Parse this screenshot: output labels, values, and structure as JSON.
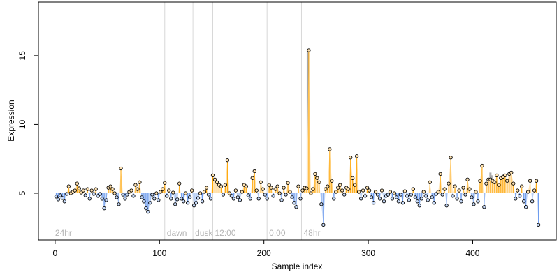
{
  "chart_data": {
    "type": "scatter",
    "title": "",
    "xlabel": "Sample index",
    "ylabel": "Expression",
    "xlim": [
      -16,
      480
    ],
    "ylim": [
      1.6,
      18.9
    ],
    "baseline": 5.0,
    "x_ticks": [
      0,
      100,
      200,
      300,
      400
    ],
    "y_ticks": [
      5,
      10,
      15
    ],
    "phase_markers": [
      {
        "label": "24hr",
        "x": 0
      },
      {
        "label": "dawn",
        "x": 105
      },
      {
        "label": "dusk",
        "x": 132
      },
      {
        "label": "12:00",
        "x": 151
      },
      {
        "label": "0:00",
        "x": 203
      },
      {
        "label": "48hr",
        "x": 236
      }
    ],
    "gray_bars": [
      {
        "x": 242,
        "value": 15.4
      },
      {
        "x": 243,
        "value": 10.2
      },
      {
        "x": 417,
        "value": 6.5
      },
      {
        "x": 418,
        "value": 6.3
      }
    ],
    "colors": {
      "above": "#ffa500",
      "below": "#6495ed",
      "fill_above": "#ffe3b3",
      "fill_below": "#c6d9f7",
      "gray_bar": "#a9a9a9",
      "gridline": "#d8d8d8"
    },
    "points": [
      [
        1,
        4.75
      ],
      [
        3,
        4.55
      ],
      [
        5,
        4.85
      ],
      [
        7,
        4.65
      ],
      [
        9,
        4.4
      ],
      [
        11,
        4.95
      ],
      [
        13,
        5.5
      ],
      [
        15,
        5.0
      ],
      [
        17,
        5.1
      ],
      [
        19,
        5.2
      ],
      [
        21,
        5.7
      ],
      [
        23,
        5.35
      ],
      [
        25,
        5.05
      ],
      [
        27,
        5.2
      ],
      [
        29,
        4.85
      ],
      [
        31,
        5.3
      ],
      [
        33,
        4.6
      ],
      [
        35,
        5.2
      ],
      [
        37,
        4.95
      ],
      [
        39,
        5.3
      ],
      [
        41,
        4.8
      ],
      [
        43,
        4.95
      ],
      [
        45,
        4.6
      ],
      [
        47,
        3.9
      ],
      [
        49,
        4.5
      ],
      [
        51,
        5.4
      ],
      [
        53,
        5.5
      ],
      [
        55,
        5.3
      ],
      [
        57,
        5.0
      ],
      [
        59,
        4.7
      ],
      [
        61,
        4.2
      ],
      [
        63,
        6.8
      ],
      [
        65,
        4.9
      ],
      [
        67,
        4.6
      ],
      [
        69,
        4.9
      ],
      [
        71,
        5.1
      ],
      [
        73,
        5.2
      ],
      [
        75,
        4.8
      ],
      [
        77,
        5.6
      ],
      [
        79,
        5.3
      ],
      [
        81,
        5.8
      ],
      [
        83,
        4.7
      ],
      [
        85,
        4.4
      ],
      [
        87,
        3.9
      ],
      [
        89,
        3.65
      ],
      [
        91,
        4.3
      ],
      [
        93,
        4.9
      ],
      [
        95,
        4.6
      ],
      [
        97,
        5.0
      ],
      [
        99,
        4.5
      ],
      [
        101,
        5.1
      ],
      [
        103,
        5.3
      ],
      [
        105,
        5.75
      ],
      [
        107,
        4.8
      ],
      [
        109,
        5.2
      ],
      [
        111,
        4.6
      ],
      [
        113,
        5.05
      ],
      [
        115,
        4.2
      ],
      [
        117,
        4.55
      ],
      [
        119,
        5.7
      ],
      [
        121,
        4.6
      ],
      [
        123,
        4.4
      ],
      [
        125,
        5.0
      ],
      [
        127,
        4.3
      ],
      [
        129,
        4.7
      ],
      [
        131,
        5.2
      ],
      [
        133,
        4.1
      ],
      [
        135,
        4.3
      ],
      [
        137,
        4.65
      ],
      [
        139,
        5.0
      ],
      [
        141,
        4.4
      ],
      [
        143,
        5.1
      ],
      [
        145,
        5.4
      ],
      [
        147,
        4.9
      ],
      [
        149,
        4.6
      ],
      [
        151,
        6.3
      ],
      [
        153,
        6.0
      ],
      [
        155,
        5.8
      ],
      [
        157,
        5.6
      ],
      [
        159,
        5.5
      ],
      [
        161,
        4.9
      ],
      [
        163,
        5.6
      ],
      [
        165,
        7.4
      ],
      [
        167,
        5.0
      ],
      [
        169,
        4.8
      ],
      [
        171,
        4.6
      ],
      [
        173,
        5.2
      ],
      [
        175,
        4.7
      ],
      [
        177,
        4.5
      ],
      [
        179,
        5.1
      ],
      [
        181,
        5.6
      ],
      [
        183,
        5.5
      ],
      [
        185,
        4.85
      ],
      [
        187,
        4.6
      ],
      [
        189,
        6.1
      ],
      [
        191,
        6.6
      ],
      [
        193,
        5.2
      ],
      [
        195,
        4.6
      ],
      [
        197,
        5.8
      ],
      [
        199,
        5.3
      ],
      [
        201,
        4.9
      ],
      [
        203,
        4.6
      ],
      [
        205,
        5.6
      ],
      [
        207,
        5.4
      ],
      [
        209,
        4.8
      ],
      [
        211,
        5.3
      ],
      [
        213,
        5.5
      ],
      [
        215,
        5.0
      ],
      [
        217,
        4.5
      ],
      [
        219,
        5.4
      ],
      [
        221,
        4.9
      ],
      [
        223,
        5.75
      ],
      [
        225,
        5.1
      ],
      [
        227,
        4.7
      ],
      [
        229,
        4.3
      ],
      [
        231,
        4.0
      ],
      [
        233,
        5.5
      ],
      [
        235,
        4.6
      ],
      [
        237,
        5.2
      ],
      [
        239,
        5.4
      ],
      [
        241,
        5.35
      ],
      [
        243,
        15.4
      ],
      [
        245,
        5.0
      ],
      [
        247,
        5.3
      ],
      [
        249,
        6.4
      ],
      [
        251,
        6.1
      ],
      [
        253,
        5.8
      ],
      [
        255,
        4.2
      ],
      [
        257,
        2.7
      ],
      [
        259,
        5.3
      ],
      [
        261,
        5.5
      ],
      [
        263,
        8.2
      ],
      [
        265,
        5.9
      ],
      [
        267,
        4.6
      ],
      [
        269,
        5.1
      ],
      [
        271,
        5.4
      ],
      [
        273,
        5.6
      ],
      [
        275,
        5.2
      ],
      [
        277,
        4.9
      ],
      [
        279,
        5.4
      ],
      [
        281,
        5.3
      ],
      [
        283,
        7.6
      ],
      [
        285,
        6.1
      ],
      [
        287,
        5.6
      ],
      [
        289,
        7.7
      ],
      [
        291,
        5.1
      ],
      [
        293,
        4.6
      ],
      [
        295,
        5.2
      ],
      [
        297,
        4.8
      ],
      [
        299,
        5.4
      ],
      [
        301,
        5.2
      ],
      [
        303,
        4.7
      ],
      [
        305,
        4.3
      ],
      [
        307,
        5.1
      ],
      [
        309,
        4.9
      ],
      [
        311,
        4.6
      ],
      [
        313,
        5.2
      ],
      [
        315,
        4.4
      ],
      [
        317,
        4.8
      ],
      [
        319,
        4.9
      ],
      [
        321,
        5.1
      ],
      [
        323,
        4.6
      ],
      [
        325,
        5.0
      ],
      [
        327,
        4.7
      ],
      [
        329,
        4.4
      ],
      [
        331,
        4.9
      ],
      [
        333,
        4.3
      ],
      [
        335,
        5.15
      ],
      [
        337,
        4.8
      ],
      [
        339,
        4.5
      ],
      [
        341,
        4.9
      ],
      [
        343,
        5.3
      ],
      [
        345,
        4.7
      ],
      [
        347,
        4.4
      ],
      [
        349,
        4.1
      ],
      [
        351,
        4.6
      ],
      [
        353,
        5.1
      ],
      [
        355,
        4.8
      ],
      [
        357,
        4.5
      ],
      [
        359,
        5.8
      ],
      [
        361,
        4.7
      ],
      [
        363,
        4.3
      ],
      [
        365,
        4.95
      ],
      [
        367,
        5.1
      ],
      [
        369,
        6.4
      ],
      [
        371,
        4.9
      ],
      [
        373,
        5.3
      ],
      [
        375,
        4.1
      ],
      [
        377,
        5.7
      ],
      [
        379,
        7.6
      ],
      [
        381,
        4.8
      ],
      [
        383,
        5.5
      ],
      [
        385,
        4.6
      ],
      [
        387,
        5.2
      ],
      [
        389,
        4.4
      ],
      [
        391,
        5.4
      ],
      [
        393,
        4.9
      ],
      [
        395,
        6.0
      ],
      [
        397,
        5.3
      ],
      [
        399,
        4.7
      ],
      [
        401,
        4.2
      ],
      [
        403,
        5.1
      ],
      [
        405,
        4.4
      ],
      [
        407,
        5.9
      ],
      [
        409,
        7.0
      ],
      [
        411,
        4.0
      ],
      [
        413,
        5.7
      ],
      [
        415,
        6.0
      ],
      [
        417,
        6.0
      ],
      [
        419,
        5.9
      ],
      [
        421,
        5.8
      ],
      [
        423,
        6.3
      ],
      [
        425,
        5.6
      ],
      [
        427,
        6.1
      ],
      [
        429,
        6.2
      ],
      [
        431,
        6.3
      ],
      [
        433,
        5.9
      ],
      [
        435,
        6.4
      ],
      [
        437,
        6.5
      ],
      [
        439,
        5.7
      ],
      [
        441,
        4.6
      ],
      [
        443,
        5.2
      ],
      [
        445,
        4.8
      ],
      [
        447,
        5.5
      ],
      [
        449,
        4.4
      ],
      [
        451,
        4.0
      ],
      [
        453,
        5.1
      ],
      [
        455,
        5.9
      ],
      [
        457,
        4.4
      ],
      [
        459,
        5.2
      ],
      [
        461,
        5.9
      ],
      [
        463,
        2.7
      ]
    ]
  }
}
